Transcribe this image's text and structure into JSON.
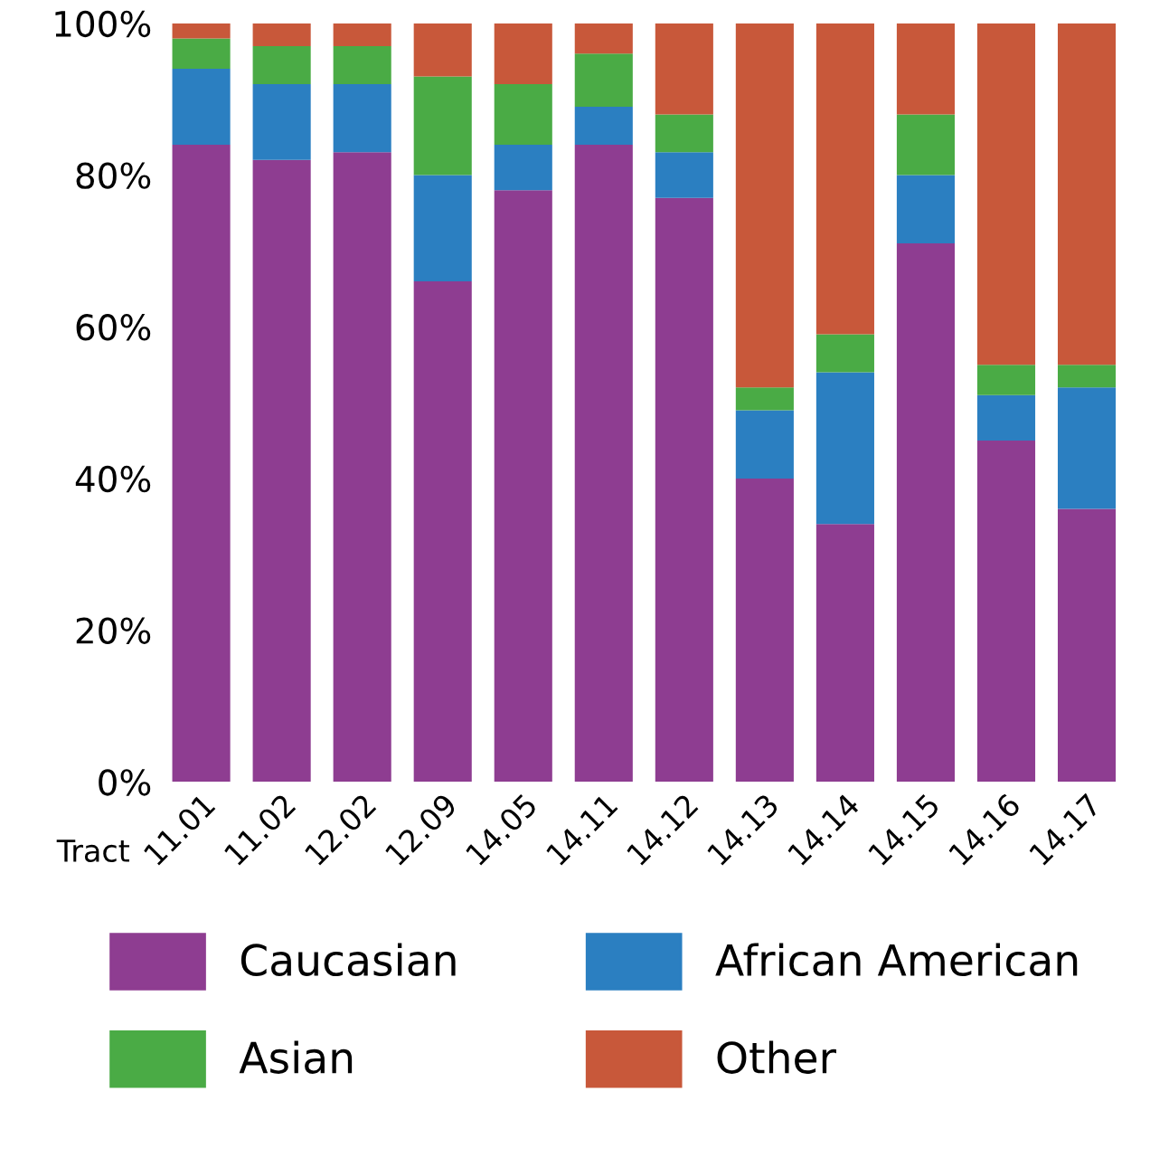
{
  "chart_data": {
    "type": "bar",
    "stacked": true,
    "xlabel": "Tract",
    "categories": [
      "11.01",
      "11.02",
      "12.02",
      "12.09",
      "14.05",
      "14.11",
      "14.12",
      "14.13",
      "14.14",
      "14.15",
      "14.16",
      "14.17"
    ],
    "series": [
      {
        "name": "Caucasian",
        "color": "#8e3d91",
        "values": [
          84,
          82,
          83,
          66,
          78,
          84,
          77,
          40,
          34,
          71,
          45,
          36
        ]
      },
      {
        "name": "African American",
        "color": "#2b7fc1",
        "values": [
          10,
          10,
          9,
          14,
          6,
          5,
          6,
          9,
          20,
          9,
          6,
          16
        ]
      },
      {
        "name": "Asian",
        "color": "#4aab45",
        "values": [
          4,
          5,
          5,
          13,
          8,
          7,
          5,
          3,
          5,
          8,
          4,
          3
        ]
      },
      {
        "name": "Other",
        "color": "#c8583a",
        "values": [
          2,
          3,
          3,
          7,
          8,
          4,
          12,
          48,
          41,
          12,
          45,
          45
        ]
      }
    ],
    "ylim": [
      0,
      100
    ],
    "yticks": [
      {
        "value": 0,
        "label": "0%"
      },
      {
        "value": 20,
        "label": "20%"
      },
      {
        "value": 40,
        "label": "40%"
      },
      {
        "value": 60,
        "label": "60%"
      },
      {
        "value": 80,
        "label": "80%"
      },
      {
        "value": 100,
        "label": "100%"
      }
    ],
    "grid": false,
    "legend": "bottom"
  }
}
